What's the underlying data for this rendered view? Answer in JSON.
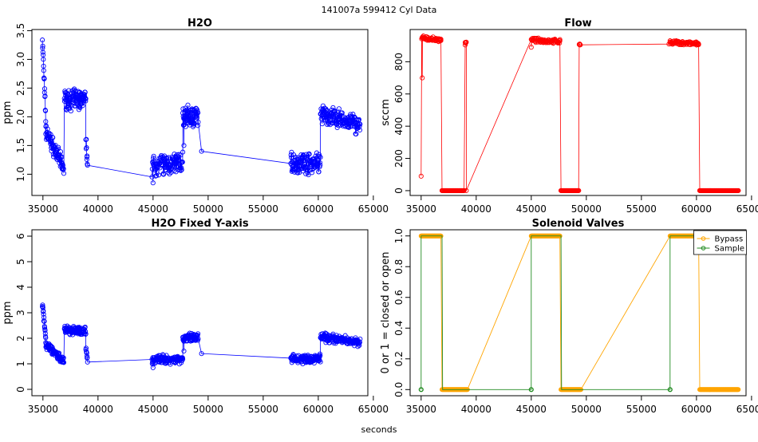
{
  "header": "141007a   599412   Cyl Data",
  "xlabel": "seconds",
  "chart_data": [
    {
      "type": "scatter",
      "title": "H2O",
      "ylabel": "ppm",
      "xlim": [
        34000,
        64500
      ],
      "ylim": [
        0.63,
        3.52
      ],
      "xticks": [
        35000,
        40000,
        45000,
        50000,
        55000,
        60000,
        65000
      ],
      "yticks": [
        1.0,
        1.5,
        2.0,
        2.5,
        3.0,
        3.5
      ],
      "color": "#0000ff",
      "connectors": [
        [
          39000,
          1.3
        ],
        [
          45000,
          0.85
        ],
        [
          47800,
          1.5
        ],
        [
          49400,
          1.4
        ],
        [
          57600,
          1.05
        ]
      ],
      "segments": [
        {
          "x0": 34950,
          "x1": 35250,
          "y0": 3.35,
          "y1": 2.0,
          "spread": 0.15,
          "n": 18
        },
        {
          "x0": 35250,
          "x1": 36900,
          "y0": 1.75,
          "y1": 1.1,
          "spread": 0.18,
          "n": 80
        },
        {
          "x0": 36950,
          "x1": 38900,
          "y0": 2.3,
          "y1": 2.3,
          "spread": 0.2,
          "n": 90
        },
        {
          "x0": 38900,
          "x1": 39050,
          "y0": 1.6,
          "y1": 1.2,
          "spread": 0.15,
          "n": 8
        },
        {
          "x0": 44900,
          "x1": 47700,
          "y0": 1.15,
          "y1": 1.2,
          "spread": 0.22,
          "n": 110
        },
        {
          "x0": 47700,
          "x1": 49100,
          "y0": 2.0,
          "y1": 2.0,
          "spread": 0.22,
          "n": 70
        },
        {
          "x0": 57500,
          "x1": 60200,
          "y0": 1.2,
          "y1": 1.2,
          "spread": 0.22,
          "n": 110
        },
        {
          "x0": 60200,
          "x1": 63800,
          "y0": 2.05,
          "y1": 1.85,
          "spread": 0.2,
          "n": 140
        }
      ]
    },
    {
      "type": "scatter",
      "title": "Flow",
      "ylabel": "sccm",
      "xlim": [
        34000,
        64500
      ],
      "ylim": [
        -30,
        1000
      ],
      "xticks": [
        35000,
        40000,
        45000,
        50000,
        55000,
        60000,
        65000
      ],
      "yticks": [
        0,
        200,
        400,
        600,
        800
      ],
      "color": "#ff0000",
      "connectors": [
        [
          35000,
          90
        ],
        [
          35100,
          700
        ],
        [
          35200,
          960
        ],
        [
          36800,
          940
        ],
        [
          36900,
          0
        ],
        [
          38900,
          0
        ],
        [
          39000,
          920
        ],
        [
          39100,
          0
        ],
        [
          45000,
          890
        ],
        [
          47600,
          930
        ],
        [
          47700,
          0
        ],
        [
          49300,
          0
        ],
        [
          49400,
          910
        ],
        [
          57500,
          910
        ],
        [
          57600,
          930
        ],
        [
          60200,
          910
        ],
        [
          60300,
          0
        ],
        [
          63800,
          0
        ]
      ],
      "segments": [
        {
          "x0": 35050,
          "x1": 36800,
          "y0": 945,
          "y1": 935,
          "spread": 15,
          "n": 50
        },
        {
          "x0": 36900,
          "x1": 38900,
          "y0": 0,
          "y1": 0,
          "spread": 0,
          "n": 40
        },
        {
          "x0": 39000,
          "x1": 39100,
          "y0": 910,
          "y1": 920,
          "spread": 10,
          "n": 4
        },
        {
          "x0": 45000,
          "x1": 47600,
          "y0": 935,
          "y1": 925,
          "spread": 15,
          "n": 70
        },
        {
          "x0": 47700,
          "x1": 49300,
          "y0": 0,
          "y1": 0,
          "spread": 0,
          "n": 35
        },
        {
          "x0": 49350,
          "x1": 49450,
          "y0": 905,
          "y1": 910,
          "spread": 8,
          "n": 3
        },
        {
          "x0": 57600,
          "x1": 60200,
          "y0": 920,
          "y1": 910,
          "spread": 15,
          "n": 70
        },
        {
          "x0": 60300,
          "x1": 63800,
          "y0": 0,
          "y1": 0,
          "spread": 0,
          "n": 70
        }
      ]
    },
    {
      "type": "scatter",
      "title": "H2O Fixed Y-axis",
      "ylabel": "ppm",
      "xlim": [
        34000,
        64500
      ],
      "ylim": [
        -0.25,
        6.25
      ],
      "xticks": [
        35000,
        40000,
        45000,
        50000,
        55000,
        60000,
        65000
      ],
      "yticks": [
        0,
        1,
        2,
        3,
        4,
        5,
        6
      ],
      "color": "#0000ff",
      "connectors": [
        [
          39000,
          1.3
        ],
        [
          45000,
          0.85
        ],
        [
          47800,
          1.5
        ],
        [
          49400,
          1.4
        ],
        [
          57600,
          1.05
        ]
      ],
      "segments": [
        {
          "x0": 34950,
          "x1": 35250,
          "y0": 3.35,
          "y1": 2.0,
          "spread": 0.15,
          "n": 18
        },
        {
          "x0": 35250,
          "x1": 36900,
          "y0": 1.75,
          "y1": 1.1,
          "spread": 0.18,
          "n": 80
        },
        {
          "x0": 36950,
          "x1": 38900,
          "y0": 2.3,
          "y1": 2.3,
          "spread": 0.2,
          "n": 90
        },
        {
          "x0": 38900,
          "x1": 39050,
          "y0": 1.6,
          "y1": 1.2,
          "spread": 0.15,
          "n": 8
        },
        {
          "x0": 44900,
          "x1": 47700,
          "y0": 1.15,
          "y1": 1.2,
          "spread": 0.22,
          "n": 110
        },
        {
          "x0": 47700,
          "x1": 49100,
          "y0": 2.0,
          "y1": 2.0,
          "spread": 0.22,
          "n": 70
        },
        {
          "x0": 57500,
          "x1": 60200,
          "y0": 1.2,
          "y1": 1.2,
          "spread": 0.22,
          "n": 110
        },
        {
          "x0": 60200,
          "x1": 63800,
          "y0": 2.05,
          "y1": 1.85,
          "spread": 0.2,
          "n": 140
        }
      ]
    },
    {
      "type": "line",
      "title": "Solenoid Valves",
      "ylabel": "0 or 1 = closed or open",
      "xlim": [
        34000,
        64500
      ],
      "ylim": [
        -0.04,
        1.04
      ],
      "xticks": [
        35000,
        40000,
        45000,
        50000,
        55000,
        60000,
        65000
      ],
      "yticks": [
        0.0,
        0.2,
        0.4,
        0.6,
        0.8,
        1.0
      ],
      "legend": "top-right",
      "series": [
        {
          "name": "Bypass",
          "color": "#ffa500",
          "connectors": [
            [
              35000,
              1
            ],
            [
              36800,
              1
            ],
            [
              36900,
              0
            ],
            [
              39200,
              0
            ],
            [
              45000,
              1
            ],
            [
              47600,
              1
            ],
            [
              47700,
              0
            ],
            [
              49500,
              0
            ],
            [
              57600,
              1
            ],
            [
              60200,
              1
            ],
            [
              60300,
              0
            ],
            [
              63800,
              0
            ]
          ],
          "segments": [
            {
              "x0": 35000,
              "x1": 36800,
              "y": 1,
              "n": 45
            },
            {
              "x0": 36900,
              "x1": 39200,
              "y": 0,
              "n": 55
            },
            {
              "x0": 45000,
              "x1": 47600,
              "y": 1,
              "n": 65
            },
            {
              "x0": 47700,
              "x1": 49500,
              "y": 0,
              "n": 45
            },
            {
              "x0": 57600,
              "x1": 60200,
              "y": 1,
              "n": 65
            },
            {
              "x0": 60300,
              "x1": 63800,
              "y": 0,
              "n": 85
            }
          ]
        },
        {
          "name": "Sample",
          "color": "#228b22",
          "connectors": [
            [
              35000,
              0
            ],
            [
              35000,
              1
            ],
            [
              36900,
              1
            ],
            [
              36950,
              0
            ],
            [
              45000,
              0
            ],
            [
              45000,
              1
            ],
            [
              47700,
              1
            ],
            [
              47750,
              0
            ],
            [
              57600,
              0
            ],
            [
              57600,
              1
            ],
            [
              60300,
              1
            ]
          ],
          "points": [
            [
              35000,
              0
            ],
            [
              45000,
              0
            ],
            [
              57600,
              0
            ]
          ]
        }
      ]
    }
  ]
}
